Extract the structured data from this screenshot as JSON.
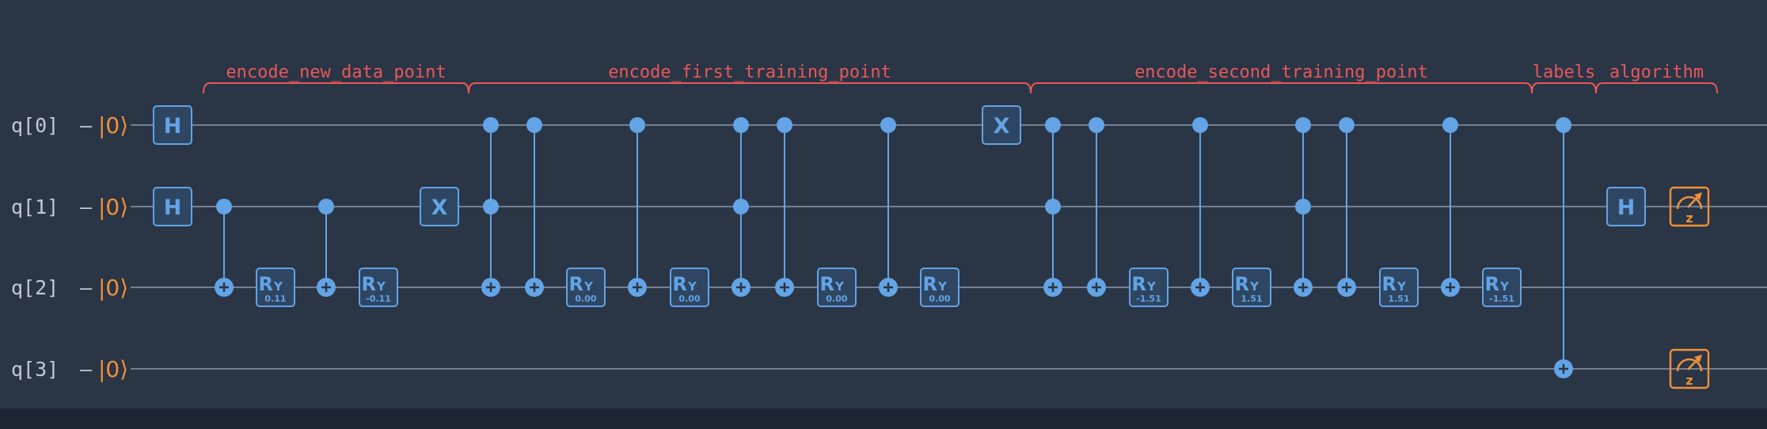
{
  "colors": {
    "background": "#2a3546",
    "footer": "#1d2633",
    "wire": "#8e9aae",
    "label": "#c3cad6",
    "ket": "#f0913a",
    "gate": "#62a4e6",
    "gate_fill": "#2f4662",
    "bracket": "#e8585a",
    "measure": "#f0913a"
  },
  "qubits": [
    {
      "label": "q[0]",
      "dash": "–",
      "ket": "|0⟩"
    },
    {
      "label": "q[1]",
      "dash": "–",
      "ket": "|0⟩"
    },
    {
      "label": "q[2]",
      "dash": "–",
      "ket": "|0⟩"
    },
    {
      "label": "q[3]",
      "dash": "–",
      "ket": "|0⟩"
    }
  ],
  "sections": [
    {
      "label": "encode_new_data_point",
      "start": 1,
      "end": 6
    },
    {
      "label": "encode_first_training_point",
      "start": 6,
      "end": 18
    },
    {
      "label": "encode_second_training_point",
      "start": 18,
      "end": 31
    },
    {
      "label": "labels",
      "start": 31,
      "end": 32
    },
    {
      "label": "algorithm",
      "start": 32,
      "end": 34
    }
  ],
  "gates": [
    {
      "type": "H",
      "label": "H",
      "qubit": 0,
      "col": 1
    },
    {
      "type": "H",
      "label": "H",
      "qubit": 1,
      "col": 1
    },
    {
      "type": "CNOT",
      "control": 1,
      "target": 2,
      "col": 2
    },
    {
      "type": "RY",
      "label": "R",
      "sub": "Y",
      "param": "0.11",
      "qubit": 2,
      "col": 3
    },
    {
      "type": "CNOT",
      "control": 1,
      "target": 2,
      "col": 4
    },
    {
      "type": "RY",
      "label": "R",
      "sub": "Y",
      "param": "-0.11",
      "qubit": 2,
      "col": 5
    },
    {
      "type": "X",
      "label": "X",
      "qubit": 1,
      "col": 6
    },
    {
      "type": "CCNOT",
      "controls": [
        0,
        1
      ],
      "target": 2,
      "col": 7
    },
    {
      "type": "CNOT",
      "control": 0,
      "target": 2,
      "col": 8
    },
    {
      "type": "RY",
      "label": "R",
      "sub": "Y",
      "param": "0.00",
      "qubit": 2,
      "col": 9
    },
    {
      "type": "CNOT",
      "control": 0,
      "target": 2,
      "col": 10
    },
    {
      "type": "RY",
      "label": "R",
      "sub": "Y",
      "param": "0.00",
      "qubit": 2,
      "col": 11
    },
    {
      "type": "CCNOT",
      "controls": [
        0,
        1
      ],
      "target": 2,
      "col": 12
    },
    {
      "type": "CNOT",
      "control": 0,
      "target": 2,
      "col": 13
    },
    {
      "type": "RY",
      "label": "R",
      "sub": "Y",
      "param": "0.00",
      "qubit": 2,
      "col": 14
    },
    {
      "type": "CNOT",
      "control": 0,
      "target": 2,
      "col": 15
    },
    {
      "type": "RY",
      "label": "R",
      "sub": "Y",
      "param": "0.00",
      "qubit": 2,
      "col": 16
    },
    {
      "type": "X",
      "label": "X",
      "qubit": 0,
      "col": 17
    },
    {
      "type": "CCNOT",
      "controls": [
        0,
        1
      ],
      "target": 2,
      "col": 18
    },
    {
      "type": "CNOT",
      "control": 0,
      "target": 2,
      "col": 19
    },
    {
      "type": "RY",
      "label": "R",
      "sub": "Y",
      "param": "-1.51",
      "qubit": 2,
      "col": 20
    },
    {
      "type": "CNOT",
      "control": 0,
      "target": 2,
      "col": 21
    },
    {
      "type": "RY",
      "label": "R",
      "sub": "Y",
      "param": "1.51",
      "qubit": 2,
      "col": 22
    },
    {
      "type": "CCNOT",
      "controls": [
        0,
        1
      ],
      "target": 2,
      "col": 23
    },
    {
      "type": "CNOT",
      "control": 0,
      "target": 2,
      "col": 24
    },
    {
      "type": "RY",
      "label": "R",
      "sub": "Y",
      "param": "1.51",
      "qubit": 2,
      "col": 25
    },
    {
      "type": "CNOT",
      "control": 0,
      "target": 2,
      "col": 26
    },
    {
      "type": "RY",
      "label": "R",
      "sub": "Y",
      "param": "-1.51",
      "qubit": 2,
      "col": 27
    },
    {
      "type": "CNOT",
      "control": 0,
      "target": 3,
      "col": 28
    },
    {
      "type": "H",
      "label": "H",
      "qubit": 1,
      "col": 29
    },
    {
      "type": "MEASURE",
      "label": "z",
      "qubit": 1,
      "col": 30
    },
    {
      "type": "MEASURE",
      "label": "z",
      "qubit": 3,
      "col": 30
    }
  ]
}
